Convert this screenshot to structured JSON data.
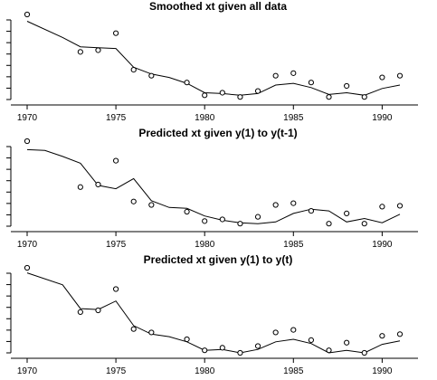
{
  "chart_data": [
    {
      "type": "line",
      "title": "Smoothed xt given all data",
      "xlim": [
        1970,
        1991
      ],
      "x_ticks": [
        1970,
        1975,
        1980,
        1985,
        1990
      ],
      "ylim": [
        0,
        10
      ],
      "y_tick_count": 8,
      "line": {
        "x": [
          1970,
          1972,
          1973,
          1974,
          1975,
          1976,
          1977,
          1978,
          1979,
          1980,
          1981,
          1982,
          1983,
          1984,
          1985,
          1986,
          1987,
          1988,
          1989,
          1990,
          1991
        ],
        "y": [
          9.2,
          7.3,
          6.2,
          6.1,
          6.0,
          3.8,
          3.0,
          2.6,
          1.9,
          0.8,
          0.7,
          0.5,
          0.7,
          1.7,
          1.9,
          1.4,
          0.6,
          0.8,
          0.5,
          1.3,
          1.7
        ]
      },
      "points": {
        "x": [
          1970,
          1973,
          1974,
          1975,
          1976,
          1977,
          1979,
          1980,
          1981,
          1982,
          1983,
          1984,
          1985,
          1986,
          1987,
          1988,
          1989,
          1990,
          1991
        ],
        "y": [
          10.0,
          5.6,
          5.8,
          7.8,
          3.5,
          2.8,
          2.0,
          0.5,
          0.8,
          0.3,
          1.0,
          2.8,
          3.1,
          2.0,
          0.3,
          1.6,
          0.3,
          2.6,
          2.8
        ]
      }
    },
    {
      "type": "line",
      "title": "Predicted xt given y(1) to y(t-1)",
      "xlim": [
        1970,
        1991
      ],
      "x_ticks": [
        1970,
        1975,
        1980,
        1985,
        1990
      ],
      "ylim": [
        0,
        10
      ],
      "y_tick_count": 8,
      "line": {
        "x": [
          1970,
          1971,
          1972,
          1973,
          1974,
          1975,
          1976,
          1977,
          1978,
          1979,
          1980,
          1981,
          1982,
          1983,
          1984,
          1985,
          1986,
          1987,
          1988,
          1989,
          1990,
          1991
        ],
        "y": [
          9.0,
          8.9,
          8.2,
          7.4,
          4.8,
          4.4,
          5.6,
          3.0,
          2.2,
          2.1,
          1.2,
          0.7,
          0.4,
          0.3,
          0.5,
          1.5,
          2.0,
          1.8,
          0.5,
          0.9,
          0.4,
          1.4
        ]
      },
      "points": {
        "x": [
          1970,
          1973,
          1974,
          1975,
          1976,
          1977,
          1979,
          1980,
          1981,
          1982,
          1983,
          1984,
          1985,
          1986,
          1987,
          1988,
          1989,
          1990,
          1991
        ],
        "y": [
          10.0,
          4.6,
          4.9,
          7.7,
          2.9,
          2.5,
          1.7,
          0.6,
          0.8,
          0.3,
          1.1,
          2.5,
          2.7,
          1.8,
          0.3,
          1.5,
          0.3,
          2.3,
          2.4
        ]
      }
    },
    {
      "type": "line",
      "title": "Predicted xt given  y(1) to y(t)",
      "xlim": [
        1970,
        1991
      ],
      "x_ticks": [
        1970,
        1975,
        1980,
        1985,
        1990
      ],
      "ylim": [
        0,
        10
      ],
      "y_tick_count": 8,
      "line": {
        "x": [
          1970,
          1972,
          1973,
          1974,
          1975,
          1976,
          1977,
          1978,
          1979,
          1980,
          1981,
          1982,
          1983,
          1984,
          1985,
          1986,
          1987,
          1988,
          1989,
          1990,
          1991
        ],
        "y": [
          9.4,
          8.0,
          5.2,
          5.1,
          6.1,
          3.2,
          2.2,
          1.9,
          1.3,
          0.3,
          0.4,
          0.0,
          0.4,
          1.3,
          1.6,
          1.1,
          0.0,
          0.3,
          0.0,
          1.0,
          1.4
        ]
      },
      "points": {
        "x": [
          1970,
          1973,
          1974,
          1975,
          1976,
          1977,
          1979,
          1980,
          1981,
          1982,
          1983,
          1984,
          1985,
          1986,
          1987,
          1988,
          1989,
          1990,
          1991
        ],
        "y": [
          10.0,
          4.8,
          5.0,
          7.5,
          2.8,
          2.4,
          1.6,
          0.3,
          0.6,
          0.0,
          0.8,
          2.4,
          2.7,
          1.5,
          0.3,
          1.2,
          0.0,
          2.0,
          2.2
        ]
      }
    }
  ]
}
